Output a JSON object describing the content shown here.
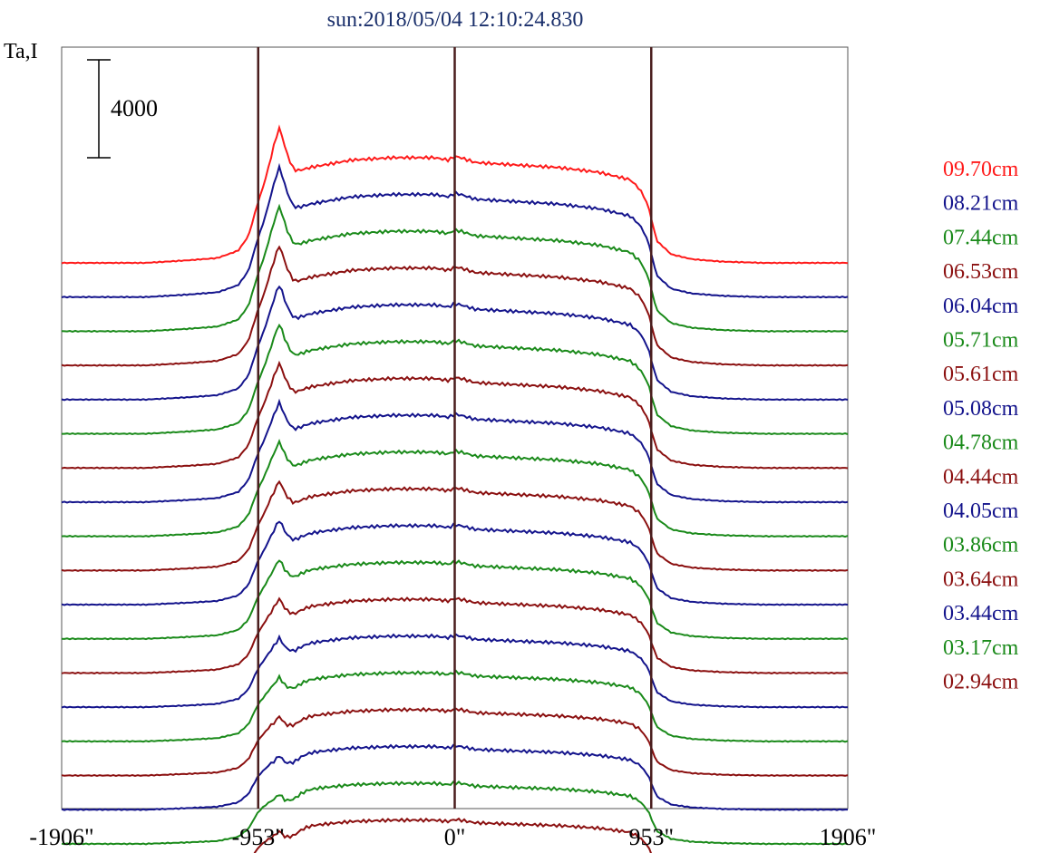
{
  "title": "sun:2018/05/04 12:10:24.830",
  "chart_data": {
    "type": "line",
    "title": "sun:2018/05/04 12:10:24.830",
    "ylabel": "Ta,I",
    "xlabel": "",
    "x_ticks": [
      {
        "value": -1906,
        "label": "-1906\""
      },
      {
        "value": -953,
        "label": "-953\""
      },
      {
        "value": 0,
        "label": "0\""
      },
      {
        "value": 953,
        "label": "953\""
      },
      {
        "value": 1906,
        "label": "1906\""
      }
    ],
    "xlim": [
      -1906,
      1906
    ],
    "vertical_lines": [
      -953,
      0,
      953
    ],
    "scale_bar": {
      "value": 4000,
      "label": "4000"
    },
    "grid": false,
    "legend_position": "right",
    "colors": {
      "red": "#ff1a1a",
      "blue": "#14148c",
      "green": "#1a8a1a",
      "darkred": "#8b1010",
      "vline": "#4a1e1e",
      "title": "#1a2f6b"
    },
    "legend": [
      {
        "name": "09.70cm",
        "color": "red"
      },
      {
        "name": "08.21cm",
        "color": "blue"
      },
      {
        "name": "07.44cm",
        "color": "green"
      },
      {
        "name": "06.53cm",
        "color": "darkred"
      },
      {
        "name": "06.04cm",
        "color": "blue"
      },
      {
        "name": "05.71cm",
        "color": "green"
      },
      {
        "name": "05.61cm",
        "color": "darkred"
      },
      {
        "name": "05.08cm",
        "color": "blue"
      },
      {
        "name": "04.78cm",
        "color": "green"
      },
      {
        "name": "04.44cm",
        "color": "darkred"
      },
      {
        "name": "04.05cm",
        "color": "blue"
      },
      {
        "name": "03.86cm",
        "color": "green"
      },
      {
        "name": "03.64cm",
        "color": "darkred"
      },
      {
        "name": "03.44cm",
        "color": "blue"
      },
      {
        "name": "03.17cm",
        "color": "green"
      },
      {
        "name": "02.94cm",
        "color": "darkred"
      }
    ],
    "series_colors": [
      "red",
      "blue",
      "green",
      "darkred",
      "blue",
      "green",
      "darkred",
      "blue",
      "green",
      "darkred",
      "blue",
      "green",
      "darkred",
      "blue",
      "green",
      "darkred",
      "blue",
      "green",
      "darkred"
    ],
    "profile": {
      "description_units": "x in arcsec, y in relative Ta (scale bar = 4000)",
      "x": [
        -1906,
        -1500,
        -1300,
        -1150,
        -1050,
        -1000,
        -953,
        -900,
        -850,
        -820,
        -780,
        -700,
        -500,
        -300,
        -100,
        -30,
        0,
        30,
        100,
        300,
        500,
        700,
        850,
        900,
        940,
        953,
        980,
        1050,
        1150,
        1300,
        1500,
        1906
      ],
      "y": [
        0,
        0,
        100,
        200,
        500,
        1100,
        2500,
        3700,
        4600,
        4000,
        3700,
        3900,
        4200,
        4300,
        4300,
        4200,
        4350,
        4300,
        4100,
        4000,
        3900,
        3700,
        3400,
        3000,
        2300,
        1800,
        900,
        350,
        150,
        50,
        0,
        0
      ]
    }
  }
}
